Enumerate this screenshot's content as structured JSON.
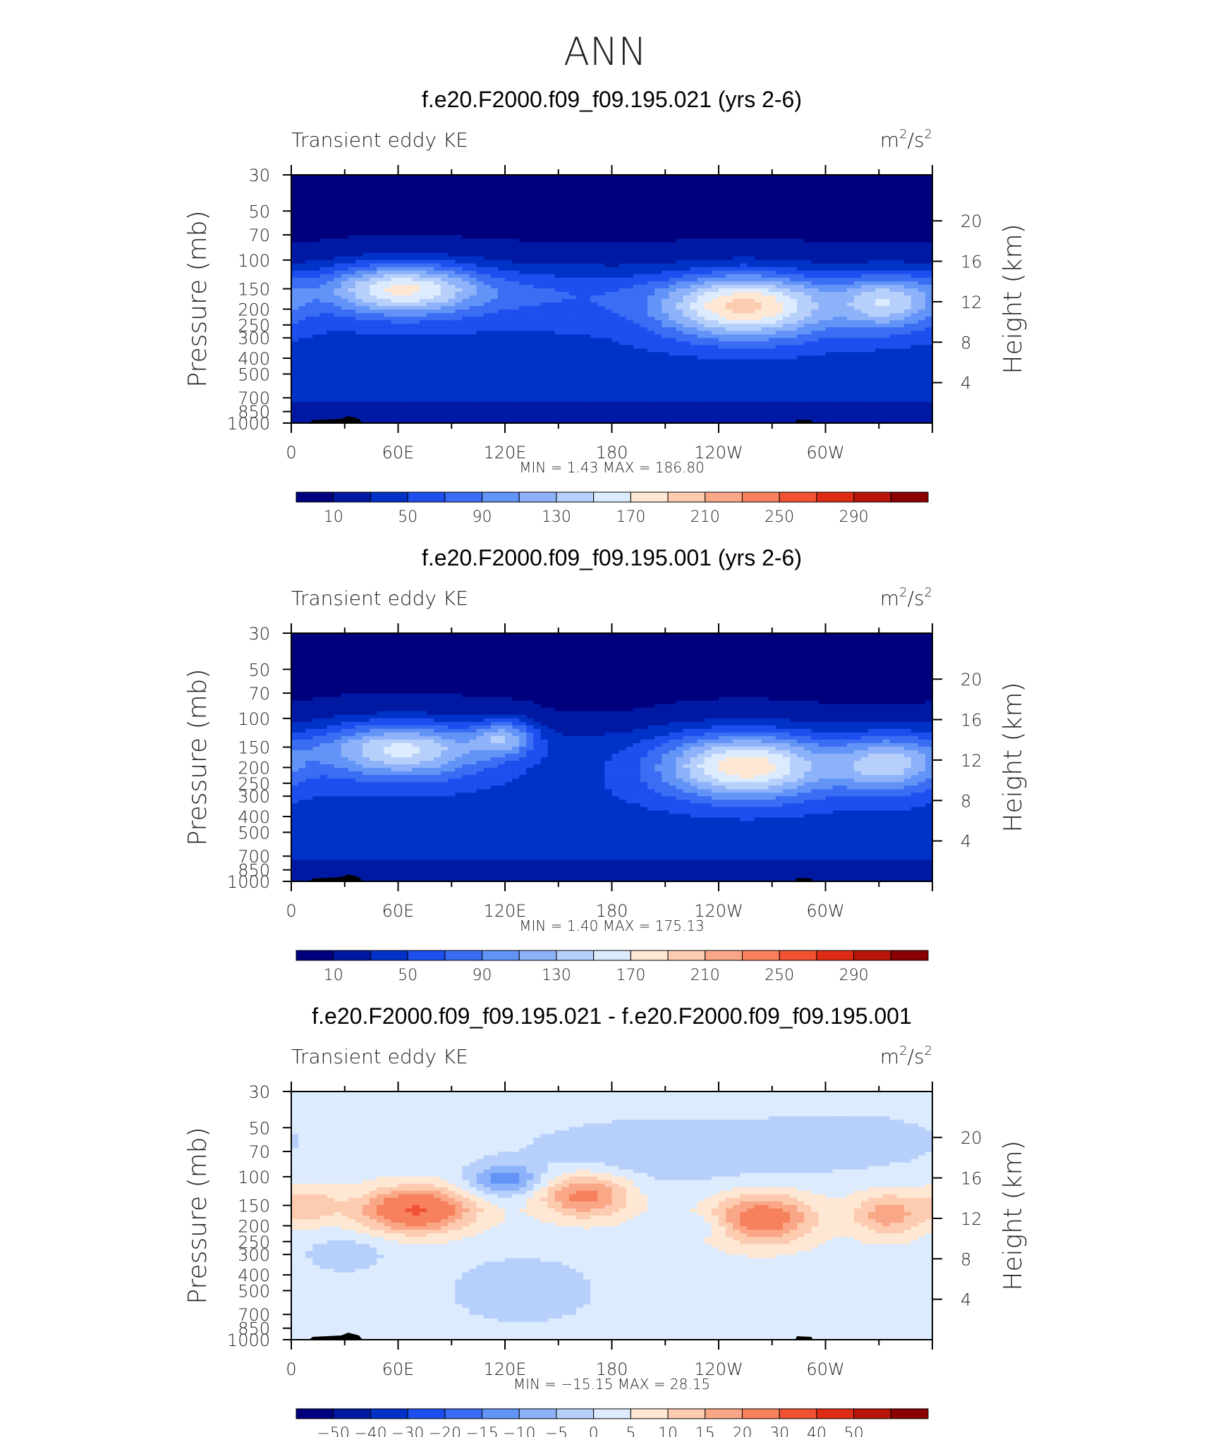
{
  "page_title": "ANN",
  "colors": {
    "blue_scale": [
      "#00007f",
      "#0019a3",
      "#0032c8",
      "#1d4fef",
      "#3a6cf4",
      "#6293f7",
      "#8db2f9",
      "#b7d0fb",
      "#dcebfd",
      "#fee7d3",
      "#fccbb0",
      "#faa787",
      "#f7805d",
      "#f25232",
      "#de2c14",
      "#b8140a",
      "#8a0000"
    ],
    "diff_scale": [
      "#00007f",
      "#0019a3",
      "#0032c8",
      "#1d4fef",
      "#3a6cf4",
      "#6293f7",
      "#8db2f9",
      "#b7d0fb",
      "#dcebfd",
      "#fee7d3",
      "#fccbb0",
      "#faa787",
      "#f7805d",
      "#f25232",
      "#de2c14",
      "#b8140a",
      "#8a0000"
    ],
    "topography": "#000000"
  },
  "chart_data": [
    {
      "type": "heatmap",
      "title": "f.e20.F2000.f09_f09.195.021 (yrs 2-6)",
      "subtitle_left": "Transient eddy KE",
      "units_base": "m",
      "units_exp1": "2",
      "units_mid": "/s",
      "units_exp2": "2",
      "ylabel": "Pressure (mb)",
      "ylabel_right": "Height (km)",
      "x_tick_labels": [
        "0",
        "60E",
        "120E",
        "180",
        "120W",
        "60W"
      ],
      "x_tick_lon": [
        0,
        60,
        120,
        180,
        240,
        300
      ],
      "y_tick_labels": [
        "30",
        "50",
        "70",
        "100",
        "150",
        "200",
        "250",
        "300",
        "400",
        "500",
        "700",
        "850",
        "1000"
      ],
      "y_tick_p": [
        30,
        50,
        70,
        100,
        150,
        200,
        250,
        300,
        400,
        500,
        700,
        850,
        1000
      ],
      "y_right_labels": [
        "20",
        "16",
        "12",
        "8",
        "4"
      ],
      "y_right_km": [
        20,
        16,
        12,
        8,
        4
      ],
      "xlim": [
        0,
        360
      ],
      "ylim": [
        1000,
        30
      ],
      "y_scale": "log",
      "stats_text": "MIN =    1.43   MAX =  186.80",
      "levels": [
        10,
        30,
        50,
        70,
        90,
        110,
        130,
        150,
        170,
        190,
        210,
        230,
        250,
        270,
        290
      ],
      "colorbar_labels": [
        "10",
        "50",
        "90",
        "130",
        "170",
        "210",
        "250",
        "290"
      ],
      "jets": [
        {
          "lon": 62,
          "p": 150,
          "peak": 168,
          "sx": 32,
          "sy": 0.26
        },
        {
          "lon": 255,
          "p": 190,
          "peak": 186,
          "sx": 34,
          "sy": 0.32
        },
        {
          "lon": 335,
          "p": 180,
          "peak": 130,
          "sx": 20,
          "sy": 0.28
        },
        {
          "lon": 150,
          "p": 160,
          "peak": 60,
          "sx": 40,
          "sy": 0.3
        }
      ]
    },
    {
      "type": "heatmap",
      "title": "f.e20.F2000.f09_f09.195.001 (yrs 2-6)",
      "subtitle_left": "Transient eddy KE",
      "units_base": "m",
      "units_exp1": "2",
      "units_mid": "/s",
      "units_exp2": "2",
      "ylabel": "Pressure (mb)",
      "ylabel_right": "Height (km)",
      "x_tick_labels": [
        "0",
        "60E",
        "120E",
        "180",
        "120W",
        "60W"
      ],
      "x_tick_lon": [
        0,
        60,
        120,
        180,
        240,
        300
      ],
      "y_tick_labels": [
        "30",
        "50",
        "70",
        "100",
        "150",
        "200",
        "250",
        "300",
        "400",
        "500",
        "700",
        "850",
        "1000"
      ],
      "y_tick_p": [
        30,
        50,
        70,
        100,
        150,
        200,
        250,
        300,
        400,
        500,
        700,
        850,
        1000
      ],
      "y_right_labels": [
        "20",
        "16",
        "12",
        "8",
        "4"
      ],
      "y_right_km": [
        20,
        16,
        12,
        8,
        4
      ],
      "xlim": [
        0,
        360
      ],
      "ylim": [
        1000,
        30
      ],
      "y_scale": "log",
      "stats_text": "MIN =    1.40   MAX =  175.13",
      "levels": [
        10,
        30,
        50,
        70,
        90,
        110,
        130,
        150,
        170,
        190,
        210,
        230,
        250,
        270,
        290
      ],
      "colorbar_labels": [
        "10",
        "50",
        "90",
        "130",
        "170",
        "210",
        "250",
        "290"
      ],
      "jets": [
        {
          "lon": 62,
          "p": 155,
          "peak": 150,
          "sx": 34,
          "sy": 0.28
        },
        {
          "lon": 255,
          "p": 195,
          "peak": 175,
          "sx": 34,
          "sy": 0.32
        },
        {
          "lon": 335,
          "p": 190,
          "peak": 125,
          "sx": 20,
          "sy": 0.28
        },
        {
          "lon": 120,
          "p": 130,
          "peak": 110,
          "sx": 12,
          "sy": 0.18
        }
      ]
    },
    {
      "type": "heatmap",
      "title": "f.e20.F2000.f09_f09.195.021 - f.e20.F2000.f09_f09.195.001",
      "subtitle_left": "Transient eddy KE",
      "units_base": "m",
      "units_exp1": "2",
      "units_mid": "/s",
      "units_exp2": "2",
      "ylabel": "Pressure (mb)",
      "ylabel_right": "Height (km)",
      "x_tick_labels": [
        "0",
        "60E",
        "120E",
        "180",
        "120W",
        "60W"
      ],
      "x_tick_lon": [
        0,
        60,
        120,
        180,
        240,
        300
      ],
      "y_tick_labels": [
        "30",
        "50",
        "70",
        "100",
        "150",
        "200",
        "250",
        "300",
        "400",
        "500",
        "700",
        "850",
        "1000"
      ],
      "y_tick_p": [
        30,
        50,
        70,
        100,
        150,
        200,
        250,
        300,
        400,
        500,
        700,
        850,
        1000
      ],
      "y_right_labels": [
        "20",
        "16",
        "12",
        "8",
        "4"
      ],
      "y_right_km": [
        20,
        16,
        12,
        8,
        4
      ],
      "xlim": [
        0,
        360
      ],
      "ylim": [
        1000,
        30
      ],
      "y_scale": "log",
      "stats_text": "MIN =  −15.15   MAX =   28.15",
      "levels": [
        -50,
        -40,
        -30,
        -20,
        -15,
        -10,
        -5,
        0,
        5,
        10,
        15,
        20,
        30,
        40,
        50
      ],
      "colorbar_labels": [
        "−50",
        "−40",
        "−30",
        "−20",
        "−15",
        "−10",
        "−5",
        "0",
        "5",
        "10",
        "15",
        "20",
        "30",
        "40",
        "50"
      ],
      "anomalies": [
        {
          "lon": 70,
          "p": 160,
          "val": 28,
          "sx": 22,
          "sy": 0.22
        },
        {
          "lon": 165,
          "p": 130,
          "val": 20,
          "sx": 18,
          "sy": 0.22
        },
        {
          "lon": 265,
          "p": 180,
          "val": 22,
          "sx": 20,
          "sy": 0.25
        },
        {
          "lon": 335,
          "p": 170,
          "val": 15,
          "sx": 14,
          "sy": 0.22
        },
        {
          "lon": 10,
          "p": 150,
          "val": 10,
          "sx": 12,
          "sy": 0.18
        },
        {
          "lon": 120,
          "p": 105,
          "val": -15,
          "sx": 14,
          "sy": 0.16
        },
        {
          "lon": 230,
          "p": 200,
          "val": -6,
          "sx": 10,
          "sy": 0.1
        },
        {
          "lon": 210,
          "p": 70,
          "val": -7,
          "sx": 60,
          "sy": 0.35
        },
        {
          "lon": 130,
          "p": 500,
          "val": -7,
          "sx": 30,
          "sy": 0.35
        },
        {
          "lon": 30,
          "p": 300,
          "val": -6,
          "sx": 18,
          "sy": 0.2
        },
        {
          "lon": 320,
          "p": 60,
          "val": -5,
          "sx": 40,
          "sy": 0.3
        }
      ]
    }
  ]
}
